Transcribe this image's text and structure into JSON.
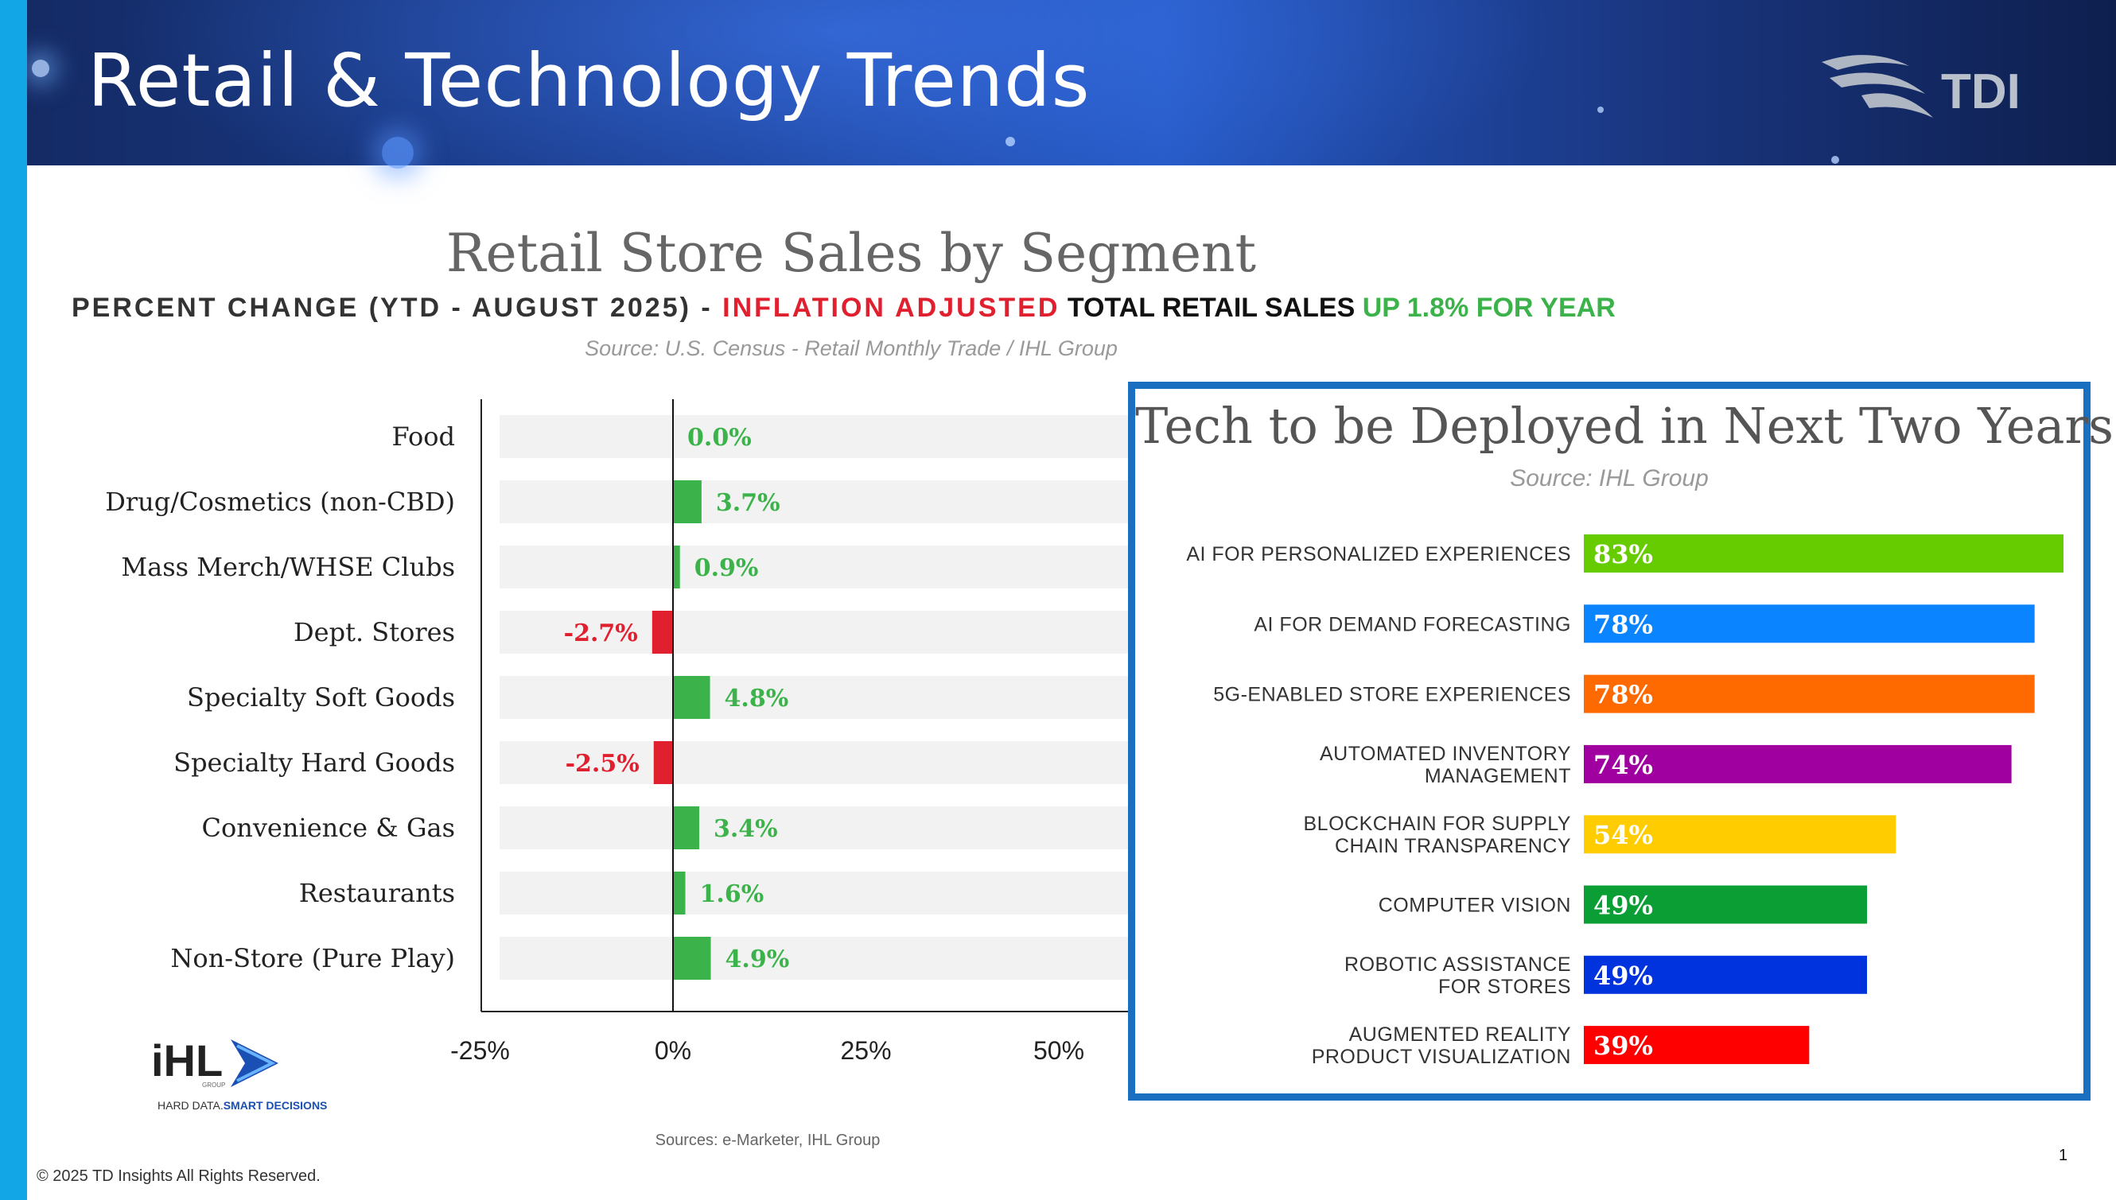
{
  "header": {
    "title": "Retail & Technology Trends",
    "logo_text": "TDI"
  },
  "retail_chart": {
    "title": "Retail Store Sales by Segment",
    "subtitle_part1": "PERCENT CHANGE (YTD - AUGUST 2025) - ",
    "subtitle_part2": "INFLATION ADJUSTED",
    "subtitle_part3": " TOTAL RETAIL SALES ",
    "subtitle_part4": "UP 1.8% FOR YEAR",
    "source": "Source: U.S. Census - Retail Monthly Trade / IHL Group"
  },
  "chart_data": [
    {
      "type": "bar",
      "orientation": "horizontal",
      "title": "Retail Store Sales by Segment",
      "categories": [
        "Food",
        "Drug/Cosmetics (non-CBD)",
        "Mass Merch/WHSE Clubs",
        "Dept. Stores",
        "Specialty Soft Goods",
        "Specialty Hard Goods",
        "Convenience & Gas",
        "Restaurants",
        "Non-Store (Pure Play)"
      ],
      "values": [
        0.0,
        3.7,
        0.9,
        -2.7,
        4.8,
        -2.5,
        3.4,
        1.6,
        4.9
      ],
      "data_labels": [
        "0.0%",
        "3.7%",
        "0.9%",
        "-2.7%",
        "4.8%",
        "-2.5%",
        "3.4%",
        "1.6%",
        "4.9%"
      ],
      "xlim": [
        -25,
        60
      ],
      "x_ticks": [
        -25,
        0,
        25,
        50
      ],
      "x_tick_labels": [
        "-25%",
        "0%",
        "25%",
        "50%"
      ],
      "positive_color": "#3cb34a",
      "negative_color": "#e0202f",
      "grid": false
    },
    {
      "type": "bar",
      "orientation": "horizontal",
      "title": "Tech to be Deployed in Next Two Years",
      "source": "Source: IHL Group",
      "categories": [
        [
          "AI FOR PERSONALIZED EXPERIENCES"
        ],
        [
          "AI FOR DEMAND FORECASTING"
        ],
        [
          "5G-ENABLED STORE EXPERIENCES"
        ],
        [
          "AUTOMATED INVENTORY",
          "MANAGEMENT"
        ],
        [
          "BLOCKCHAIN FOR SUPPLY",
          "CHAIN TRANSPARENCY"
        ],
        [
          "COMPUTER VISION"
        ],
        [
          "ROBOTIC ASSISTANCE",
          "FOR STORES"
        ],
        [
          "AUGMENTED REALITY",
          "PRODUCT VISUALIZATION"
        ]
      ],
      "values": [
        83,
        78,
        78,
        74,
        54,
        49,
        49,
        39
      ],
      "data_labels": [
        "83%",
        "78%",
        "78%",
        "74%",
        "54%",
        "49%",
        "49%",
        "39%"
      ],
      "xlim": [
        0,
        83
      ],
      "colors": [
        "#66cc00",
        "#0a84ff",
        "#ff6a00",
        "#a000a0",
        "#ffcc00",
        "#0a9e34",
        "#0033dd",
        "#ff0000"
      ],
      "label_colors": [
        "#ffffff",
        "#ffffff",
        "#ffffff",
        "#ffffff",
        "#ffffff",
        "#ffffff",
        "#ffffff",
        "#ffffff"
      ],
      "grid": false
    }
  ],
  "ihl_logo": {
    "name": "iHL",
    "sub": "GROUP",
    "tagline_1": "HARD DATA.",
    "tagline_2": "SMART DECISIONS"
  },
  "footer": {
    "sources": "Sources: e-Marketer, IHL Group",
    "copyright": "© 2025 TD Insights All Rights Reserved.",
    "page_number": "1"
  }
}
